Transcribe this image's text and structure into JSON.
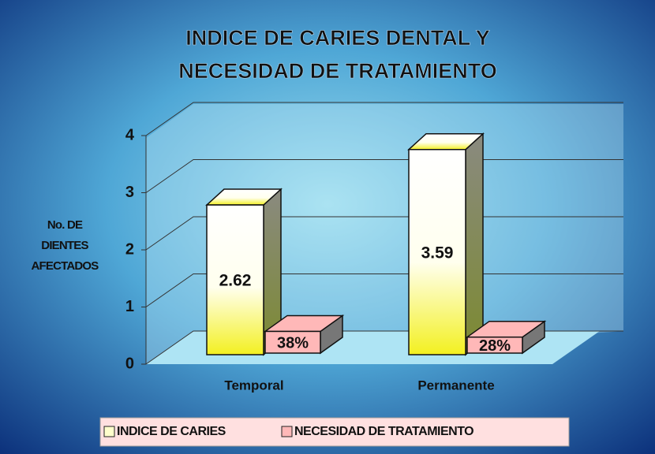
{
  "chart_data": {
    "type": "bar3d",
    "title": [
      "INDICE DE CARIES DENTAL Y",
      "NECESIDAD DE TRATAMIENTO"
    ],
    "ylabel": [
      "No. DE",
      "DIENTES",
      "AFECTADOS"
    ],
    "categories": [
      "Temporal",
      "Permanente"
    ],
    "series": [
      {
        "name": "INDICE DE CARIES",
        "color": "#ffff55",
        "values": [
          2.62,
          3.59
        ]
      },
      {
        "name": "NECESIDAD DE TRATAMIENTO",
        "color": "#ffb8b8",
        "values": [
          0.38,
          0.28
        ],
        "value_labels": [
          "38%",
          "28%"
        ]
      }
    ],
    "ylim": [
      0,
      4
    ],
    "yticks": [
      0,
      1,
      2,
      3,
      4
    ],
    "grid": true
  }
}
